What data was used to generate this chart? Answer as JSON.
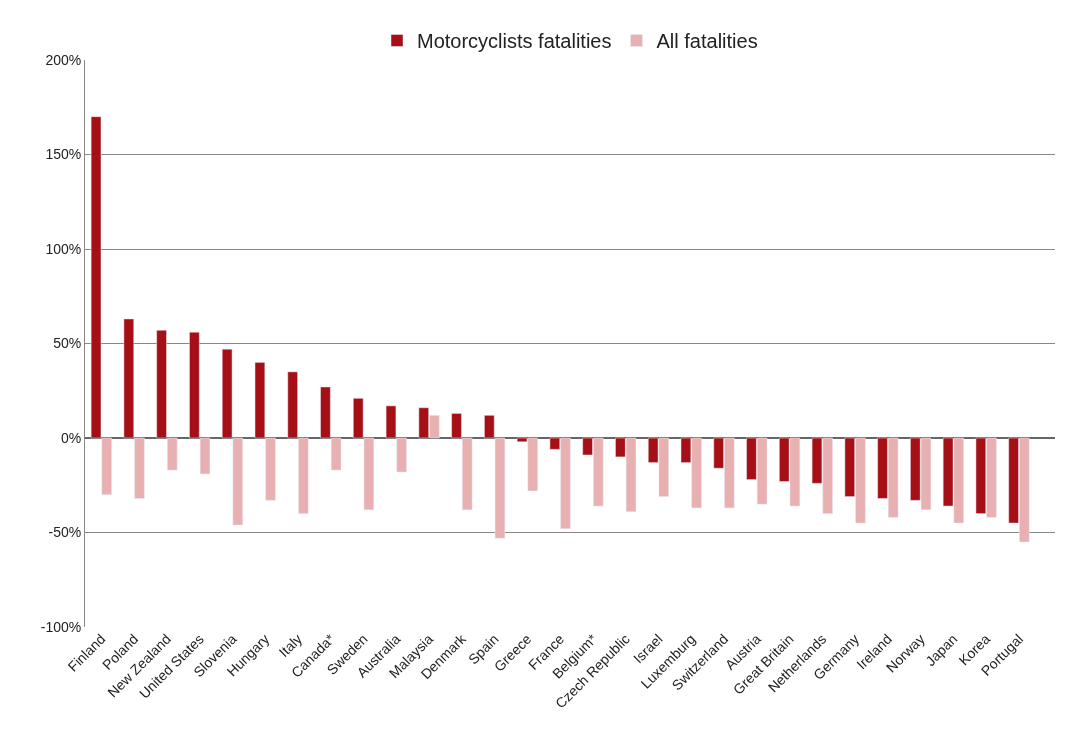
{
  "chart_data": {
    "type": "bar",
    "categories": [
      "Finland",
      "Poland",
      "New Zealand",
      "United States",
      "Slovenia",
      "Hungary",
      "Italy",
      "Canada*",
      "Sweden",
      "Australia",
      "Malaysia",
      "Denmark",
      "Spain",
      "Greece",
      "France",
      "Belgium*",
      "Czech Republic",
      "Israel",
      "Luxemburg",
      "Switzerland",
      "Austria",
      "Great Britain",
      "Netherlands",
      "Germany",
      "Ireland",
      "Norway",
      "Japan",
      "Korea",
      "Portugal"
    ],
    "series": [
      {
        "name": "Motorcyclists fatalities",
        "color": "#a50f15",
        "values": [
          170,
          63,
          57,
          56,
          47,
          40,
          35,
          27,
          21,
          17,
          16,
          13,
          12,
          -2,
          -6,
          -9,
          -10,
          -13,
          -13,
          -16,
          -22,
          -23,
          -24,
          -31,
          -32,
          -33,
          -36,
          -40,
          -45
        ]
      },
      {
        "name": "All fatalities",
        "color": "#e8b0b0",
        "values": [
          -30,
          -32,
          -17,
          -19,
          -46,
          -33,
          -40,
          -17,
          -38,
          -18,
          12,
          -38,
          -53,
          -28,
          -48,
          -36,
          -39,
          -31,
          -37,
          -37,
          -35,
          -36,
          -40,
          -45,
          -42,
          -38,
          -45,
          -42,
          -55
        ]
      }
    ],
    "ylim": [
      -100,
      200
    ],
    "yticks": [
      {
        "value": -100,
        "label": "-100%"
      },
      {
        "value": -50,
        "label": "-50%"
      },
      {
        "value": 0,
        "label": "0%"
      },
      {
        "value": 50,
        "label": "50%"
      },
      {
        "value": 100,
        "label": "100%"
      },
      {
        "value": 150,
        "label": "150%"
      },
      {
        "value": 200,
        "label": "200%"
      }
    ],
    "grid": "y",
    "legend": "top"
  }
}
